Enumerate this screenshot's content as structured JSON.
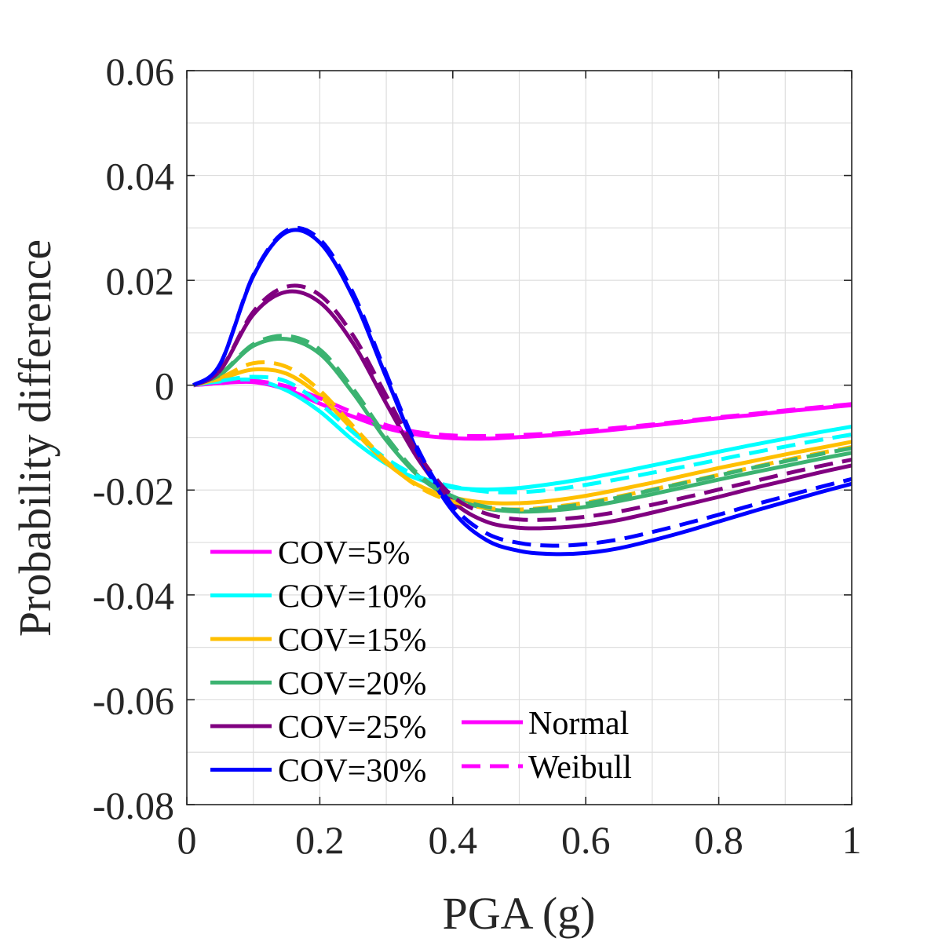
{
  "chart_data": {
    "type": "line",
    "xlabel": "PGA (g)",
    "ylabel": "Probability difference",
    "xlim": [
      0,
      1
    ],
    "ylim": [
      -0.08,
      0.06
    ],
    "grid": true,
    "x_ticks": [
      0,
      0.2,
      0.4,
      0.6,
      0.8,
      1
    ],
    "x_tick_labels": [
      "0",
      "0.2",
      "0.4",
      "0.6",
      "0.8",
      "1"
    ],
    "y_ticks": [
      0.06,
      0.04,
      0.02,
      0,
      -0.02,
      -0.04,
      -0.06,
      -0.08
    ],
    "y_tick_labels": [
      "0.06",
      "0.04",
      "0.02",
      "0",
      "-0.02",
      "-0.04",
      "-0.06",
      "-0.08"
    ],
    "x": [
      0.01,
      0.05,
      0.1,
      0.15,
      0.2,
      0.25,
      0.3,
      0.35,
      0.4,
      0.45,
      0.5,
      0.55,
      0.6,
      0.65,
      0.7,
      0.75,
      0.8,
      0.85,
      0.9,
      0.95,
      1.0
    ],
    "series": [
      {
        "name": "COV=5%",
        "distribution": "Normal",
        "color": "#ff00ff",
        "values": [
          0,
          0.0004,
          0.0006,
          -0.0008,
          -0.0035,
          -0.006,
          -0.0082,
          -0.0095,
          -0.0101,
          -0.0102,
          -0.0099,
          -0.0095,
          -0.009,
          -0.0084,
          -0.0077,
          -0.007,
          -0.0063,
          -0.0057,
          -0.005,
          -0.0044,
          -0.0038
        ]
      },
      {
        "name": "COV=5%",
        "distribution": "Weibull",
        "color": "#ff00ff",
        "values": [
          0,
          0.0004,
          0.0008,
          -0.0002,
          -0.0025,
          -0.0052,
          -0.0076,
          -0.009,
          -0.0096,
          -0.0097,
          -0.0095,
          -0.0092,
          -0.0087,
          -0.0081,
          -0.0075,
          -0.0068,
          -0.0061,
          -0.0055,
          -0.0048,
          -0.0042,
          -0.0036
        ]
      },
      {
        "name": "COV=10%",
        "distribution": "Normal",
        "color": "#00ffff",
        "values": [
          0,
          0.0007,
          0.001,
          -0.001,
          -0.005,
          -0.0105,
          -0.015,
          -0.018,
          -0.0195,
          -0.0199,
          -0.0196,
          -0.0188,
          -0.0178,
          -0.0166,
          -0.0153,
          -0.014,
          -0.0127,
          -0.0114,
          -0.0102,
          -0.009,
          -0.0079
        ]
      },
      {
        "name": "COV=10%",
        "distribution": "Weibull",
        "color": "#00ffff",
        "values": [
          0,
          0.0008,
          0.0016,
          0.0007,
          -0.0035,
          -0.009,
          -0.014,
          -0.0175,
          -0.0193,
          -0.0203,
          -0.0204,
          -0.0199,
          -0.019,
          -0.0179,
          -0.0167,
          -0.0155,
          -0.0142,
          -0.0129,
          -0.0117,
          -0.0105,
          -0.0094
        ]
      },
      {
        "name": "COV=15%",
        "distribution": "Normal",
        "color": "#ffbf00",
        "values": [
          0,
          0.0012,
          0.003,
          0.0022,
          -0.002,
          -0.0085,
          -0.0148,
          -0.0192,
          -0.0214,
          -0.0224,
          -0.0225,
          -0.022,
          -0.0211,
          -0.0199,
          -0.0186,
          -0.0172,
          -0.0158,
          -0.0145,
          -0.0132,
          -0.012,
          -0.0108
        ]
      },
      {
        "name": "COV=15%",
        "distribution": "Weibull",
        "color": "#ffbf00",
        "values": [
          0,
          0.0014,
          0.0042,
          0.0035,
          -0.001,
          -0.0078,
          -0.0145,
          -0.0195,
          -0.0222,
          -0.0234,
          -0.0237,
          -0.0232,
          -0.0224,
          -0.0212,
          -0.0199,
          -0.0185,
          -0.0171,
          -0.0157,
          -0.0143,
          -0.013,
          -0.0118
        ]
      },
      {
        "name": "COV=20%",
        "distribution": "Normal",
        "color": "#3cb371",
        "values": [
          0,
          0.002,
          0.0075,
          0.0088,
          0.006,
          -0.0015,
          -0.0105,
          -0.0175,
          -0.0215,
          -0.0235,
          -0.0241,
          -0.0239,
          -0.0232,
          -0.0221,
          -0.0208,
          -0.0194,
          -0.018,
          -0.0167,
          -0.0154,
          -0.0141,
          -0.0129
        ]
      },
      {
        "name": "COV=20%",
        "distribution": "Weibull",
        "color": "#3cb371",
        "values": [
          0,
          0.0021,
          0.0078,
          0.0094,
          0.0068,
          -0.0007,
          -0.0098,
          -0.0172,
          -0.0212,
          -0.0232,
          -0.0238,
          -0.0234,
          -0.0226,
          -0.0214,
          -0.02,
          -0.0186,
          -0.0172,
          -0.0158,
          -0.0145,
          -0.0132,
          -0.012
        ]
      },
      {
        "name": "COV=25%",
        "distribution": "Normal",
        "color": "#800080",
        "values": [
          0,
          0.0028,
          0.0135,
          0.0178,
          0.0158,
          0.008,
          -0.0035,
          -0.0145,
          -0.0222,
          -0.026,
          -0.0272,
          -0.0272,
          -0.0267,
          -0.0257,
          -0.0243,
          -0.0228,
          -0.0213,
          -0.0197,
          -0.0182,
          -0.0167,
          -0.0153
        ]
      },
      {
        "name": "COV=25%",
        "distribution": "Weibull",
        "color": "#800080",
        "values": [
          0,
          0.0028,
          0.014,
          0.0188,
          0.0172,
          0.0095,
          -0.002,
          -0.0135,
          -0.0212,
          -0.0245,
          -0.0256,
          -0.0256,
          -0.0251,
          -0.0241,
          -0.0228,
          -0.0214,
          -0.0199,
          -0.0184,
          -0.0169,
          -0.0155,
          -0.0142
        ]
      },
      {
        "name": "COV=30%",
        "distribution": "Normal",
        "color": "#0000ff",
        "values": [
          0,
          0.004,
          0.0208,
          0.0292,
          0.0272,
          0.0168,
          0.0015,
          -0.0135,
          -0.024,
          -0.0295,
          -0.0316,
          -0.0322,
          -0.032,
          -0.0311,
          -0.0296,
          -0.0279,
          -0.026,
          -0.0241,
          -0.0223,
          -0.0205,
          -0.0188
        ]
      },
      {
        "name": "COV=30%",
        "distribution": "Weibull",
        "color": "#0000ff",
        "values": [
          0,
          0.004,
          0.021,
          0.0295,
          0.0278,
          0.0176,
          0.0022,
          -0.0128,
          -0.023,
          -0.0282,
          -0.0301,
          -0.0306,
          -0.0303,
          -0.0294,
          -0.028,
          -0.0264,
          -0.0247,
          -0.0229,
          -0.0212,
          -0.0195,
          -0.0179
        ]
      }
    ],
    "legend": {
      "placement": "bottom-left",
      "cov_entries": [
        {
          "label": "COV=5%",
          "color": "#ff00ff"
        },
        {
          "label": "COV=10%",
          "color": "#00ffff"
        },
        {
          "label": "COV=15%",
          "color": "#ffbf00"
        },
        {
          "label": "COV=20%",
          "color": "#3cb371"
        },
        {
          "label": "COV=25%",
          "color": "#800080"
        },
        {
          "label": "COV=30%",
          "color": "#0000ff"
        }
      ],
      "style_entries": [
        {
          "label": "Normal",
          "dash": "solid",
          "color": "#ff00ff"
        },
        {
          "label": "Weibull",
          "dash": "dashed",
          "color": "#ff00ff"
        }
      ]
    }
  }
}
